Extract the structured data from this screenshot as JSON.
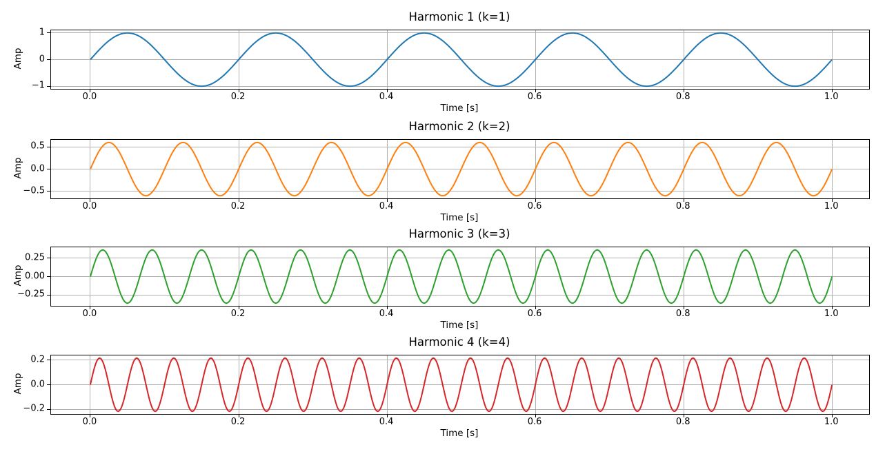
{
  "figure": {
    "background": "#ffffff",
    "grid_color": "#b0b0b0",
    "spine_color": "#000000",
    "text_color": "#000000"
  },
  "chart_data": {
    "type": "line",
    "layout": "4 vertically stacked subplots, grid on, no legend",
    "wave": "amplitude * sin(2*pi*frequency_hz*t)",
    "t_range": [
      0,
      1
    ],
    "xlim": [
      -0.053,
      1.05
    ],
    "x_ticks": [
      0.0,
      0.2,
      0.4,
      0.6,
      0.8,
      1.0
    ],
    "x_tick_labels": [
      "0.0",
      "0.2",
      "0.4",
      "0.6",
      "0.8",
      "1.0"
    ],
    "subplots": [
      {
        "title": "Harmonic 1 (k=1)",
        "k": 1,
        "frequency_hz": 5,
        "amplitude": 1.0,
        "color": "#1f77b4",
        "xlabel": "Time [s]",
        "ylabel": "Amp",
        "ylim": [
          -1.1,
          1.1
        ],
        "y_ticks": [
          1,
          0,
          -1
        ],
        "y_tick_labels": [
          "1",
          "0",
          "−1"
        ]
      },
      {
        "title": "Harmonic 2 (k=2)",
        "k": 2,
        "frequency_hz": 10,
        "amplitude": 0.6,
        "color": "#ff7f0e",
        "xlabel": "Time [s]",
        "ylabel": "Amp",
        "ylim": [
          -0.66,
          0.66
        ],
        "y_ticks": [
          0.5,
          0,
          -0.5
        ],
        "y_tick_labels": [
          "0.5",
          "0.0",
          "−0.5"
        ]
      },
      {
        "title": "Harmonic 3 (k=3)",
        "k": 3,
        "frequency_hz": 15,
        "amplitude": 0.36,
        "color": "#2ca02c",
        "xlabel": "Time [s]",
        "ylabel": "Amp",
        "ylim": [
          -0.396,
          0.396
        ],
        "y_ticks": [
          0.25,
          0,
          -0.25
        ],
        "y_tick_labels": [
          "0.25",
          "0.00",
          "−0.25"
        ]
      },
      {
        "title": "Harmonic 4 (k=4)",
        "k": 4,
        "frequency_hz": 20,
        "amplitude": 0.216,
        "color": "#d62728",
        "xlabel": "Time [s]",
        "ylabel": "Amp",
        "ylim": [
          -0.2376,
          0.2376
        ],
        "y_ticks": [
          0.2,
          0,
          -0.2
        ],
        "y_tick_labels": [
          "0.2",
          "0.0",
          "−0.2"
        ]
      }
    ]
  }
}
